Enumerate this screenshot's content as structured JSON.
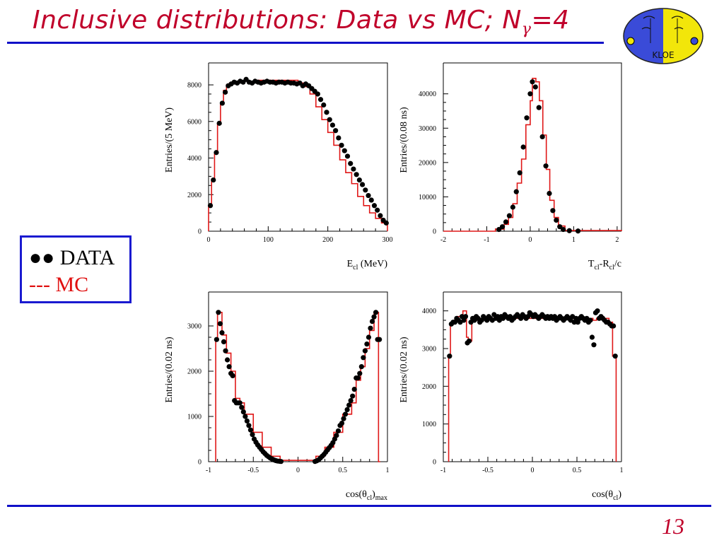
{
  "slide": {
    "title_main": "Inclusive distributions: Data vs MC;   N",
    "title_sub": "γ",
    "title_tail": "=4",
    "page_number": "13",
    "colors": {
      "title": "#c0002a",
      "rule": "#1010c8",
      "mc": "#e01818",
      "data": "#000000",
      "legend_border": "#1a1ad0"
    }
  },
  "logo": {
    "icon": "kloe-logo-icon",
    "text": "KLOE"
  },
  "legend": {
    "data_label": "●● DATA",
    "mc_label": "--- MC"
  },
  "chart_data": [
    {
      "type": "histogram",
      "name": "energy",
      "xlabel": "E",
      "xlabel_sub": "cl",
      "xlabel_tail": " (MeV)",
      "ylabel": "Entries/(5 MeV)",
      "xlim": [
        0,
        300
      ],
      "ylim": [
        0,
        9200
      ],
      "xticks": [
        0,
        100,
        200,
        300
      ],
      "yticks": [
        0,
        2000,
        4000,
        6000,
        8000
      ],
      "mc_bins_x": [
        0,
        5,
        10,
        15,
        20,
        25,
        30,
        35,
        40,
        50,
        60,
        80,
        100,
        130,
        150,
        160,
        170,
        180,
        190,
        200,
        210,
        220,
        230,
        240,
        250,
        260,
        270,
        280,
        290,
        300
      ],
      "mc_values": [
        1400,
        2800,
        4300,
        5900,
        7000,
        7700,
        8000,
        8100,
        8150,
        8200,
        8200,
        8250,
        8250,
        8250,
        8100,
        7900,
        7500,
        6800,
        6100,
        5400,
        4700,
        3900,
        3200,
        2600,
        1900,
        1400,
        1000,
        700,
        450
      ],
      "data_x": [
        3,
        8,
        13,
        18,
        23,
        28,
        33,
        38,
        43,
        48,
        53,
        58,
        63,
        68,
        73,
        78,
        83,
        88,
        93,
        98,
        103,
        108,
        113,
        118,
        123,
        128,
        133,
        138,
        143,
        148,
        153,
        158,
        163,
        168,
        173,
        178,
        183,
        188,
        193,
        198,
        203,
        208,
        213,
        218,
        223,
        228,
        233,
        238,
        243,
        248,
        253,
        258,
        263,
        268,
        273,
        278,
        283,
        288,
        293,
        298
      ],
      "data_y": [
        1400,
        2800,
        4300,
        5900,
        7000,
        7600,
        7950,
        8050,
        8150,
        8100,
        8200,
        8150,
        8300,
        8150,
        8100,
        8200,
        8150,
        8100,
        8150,
        8200,
        8150,
        8150,
        8100,
        8150,
        8150,
        8100,
        8150,
        8100,
        8100,
        8050,
        8100,
        7950,
        8050,
        7950,
        7800,
        7650,
        7500,
        7200,
        6900,
        6500,
        6100,
        5800,
        5500,
        5100,
        4700,
        4400,
        4100,
        3700,
        3400,
        3100,
        2800,
        2550,
        2250,
        1950,
        1700,
        1400,
        1150,
        850,
        600,
        450
      ]
    },
    {
      "type": "histogram",
      "name": "time",
      "xlabel": "T",
      "xlabel_sub": "cl",
      "xlabel_tail": "-R",
      "xlabel_sub2": "cl",
      "xlabel_tail2": "/c",
      "ylabel": "Entries/(0.08 ns)",
      "xlim": [
        -2,
        2.1
      ],
      "ylim": [
        0,
        49000
      ],
      "xticks": [
        -2,
        -1,
        0,
        1,
        2
      ],
      "yticks": [
        0,
        10000,
        20000,
        30000,
        40000
      ],
      "mc_bins_x": [
        -2,
        -0.8,
        -0.6,
        -0.5,
        -0.4,
        -0.3,
        -0.2,
        -0.1,
        0,
        0.05,
        0.13,
        0.21,
        0.29,
        0.37,
        0.45,
        0.55,
        0.65,
        0.8,
        2.1
      ],
      "mc_values": [
        0,
        600,
        2000,
        4000,
        8000,
        14000,
        21000,
        31000,
        38000,
        44500,
        43500,
        38000,
        28000,
        18000,
        9000,
        4000,
        1500,
        200
      ],
      "data_x": [
        -0.72,
        -0.64,
        -0.56,
        -0.48,
        -0.4,
        -0.32,
        -0.24,
        -0.16,
        -0.08,
        0.0,
        0.05,
        0.12,
        0.2,
        0.28,
        0.36,
        0.44,
        0.52,
        0.6,
        0.68,
        0.76,
        0.9,
        1.1
      ],
      "data_y": [
        500,
        1300,
        2700,
        4500,
        7000,
        11500,
        17000,
        24500,
        33000,
        40000,
        43500,
        42000,
        36000,
        27500,
        19000,
        11000,
        6000,
        3200,
        1300,
        500,
        150,
        50
      ]
    },
    {
      "type": "histogram",
      "name": "cos-max",
      "xlabel": "cos(θ",
      "xlabel_sub": "cl",
      "xlabel_tail": ")",
      "xlabel_sub2": "max",
      "xlabel_tail2": "",
      "ylabel": "Entries/(0.02 ns)",
      "xlim": [
        -1,
        1
      ],
      "ylim": [
        0,
        3750
      ],
      "xticks": [
        -1,
        -0.5,
        0,
        0.5,
        1
      ],
      "yticks": [
        0,
        1000,
        2000,
        3000
      ],
      "mc_bins_x": [
        -0.92,
        -0.9,
        -0.85,
        -0.8,
        -0.75,
        -0.7,
        -0.65,
        -0.6,
        -0.5,
        -0.4,
        -0.3,
        -0.2,
        0.2,
        0.3,
        0.4,
        0.5,
        0.6,
        0.65,
        0.7,
        0.75,
        0.8,
        0.85,
        0.9,
        0.92
      ],
      "mc_values": [
        2700,
        3300,
        2800,
        2400,
        2000,
        1400,
        1300,
        1050,
        650,
        320,
        120,
        30,
        120,
        320,
        650,
        1050,
        1300,
        1800,
        2100,
        2500,
        2900,
        3300,
        0
      ],
      "data_x": [
        -0.91,
        -0.89,
        -0.87,
        -0.85,
        -0.83,
        -0.81,
        -0.79,
        -0.77,
        -0.75,
        -0.73,
        -0.71,
        -0.69,
        -0.67,
        -0.65,
        -0.63,
        -0.61,
        -0.59,
        -0.57,
        -0.55,
        -0.53,
        -0.51,
        -0.49,
        -0.47,
        -0.45,
        -0.43,
        -0.41,
        -0.39,
        -0.37,
        -0.35,
        -0.33,
        -0.31,
        -0.29,
        -0.27,
        -0.25,
        -0.23,
        -0.21,
        -0.19,
        0.19,
        0.21,
        0.23,
        0.25,
        0.27,
        0.29,
        0.31,
        0.33,
        0.35,
        0.37,
        0.39,
        0.41,
        0.43,
        0.45,
        0.47,
        0.49,
        0.51,
        0.53,
        0.55,
        0.57,
        0.59,
        0.61,
        0.63,
        0.65,
        0.67,
        0.69,
        0.71,
        0.73,
        0.75,
        0.77,
        0.79,
        0.81,
        0.83,
        0.85,
        0.87,
        0.89,
        0.91
      ],
      "data_y": [
        2700,
        3300,
        3050,
        2850,
        2650,
        2450,
        2250,
        2100,
        1950,
        1900,
        1350,
        1300,
        1300,
        1300,
        1200,
        1100,
        1000,
        900,
        800,
        700,
        600,
        500,
        430,
        370,
        320,
        270,
        220,
        180,
        140,
        110,
        80,
        60,
        40,
        25,
        15,
        10,
        5,
        5,
        20,
        40,
        80,
        120,
        160,
        210,
        260,
        310,
        360,
        420,
        500,
        580,
        680,
        800,
        850,
        950,
        1050,
        1150,
        1250,
        1350,
        1450,
        1600,
        1850,
        1850,
        1950,
        2100,
        2300,
        2450,
        2600,
        2750,
        2950,
        3100,
        3200,
        3300,
        2700,
        2700
      ]
    },
    {
      "type": "histogram",
      "name": "cos",
      "xlabel": "cos(θ",
      "xlabel_sub": "cl",
      "xlabel_tail": ")",
      "ylabel": "Entries/(0.02 ns)",
      "xlim": [
        -1,
        1
      ],
      "ylim": [
        0,
        4500
      ],
      "xticks": [
        -1,
        -0.5,
        0,
        0.5,
        1
      ],
      "yticks": [
        0,
        1000,
        2000,
        3000,
        4000
      ],
      "mc_bins_x": [
        -0.94,
        -0.92,
        -0.88,
        -0.84,
        -0.78,
        -0.74,
        -0.72,
        -0.68,
        -0.6,
        0.6,
        0.68,
        0.72,
        0.76,
        0.8,
        0.86,
        0.9,
        0.94
      ],
      "mc_values": [
        2800,
        3650,
        3750,
        3850,
        4000,
        3300,
        3200,
        3750,
        3800,
        3800,
        3750,
        3800,
        3850,
        3800,
        3700,
        2800
      ],
      "data_x": [
        -0.93,
        -0.91,
        -0.89,
        -0.87,
        -0.85,
        -0.83,
        -0.81,
        -0.79,
        -0.77,
        -0.75,
        -0.73,
        -0.71,
        -0.69,
        -0.67,
        -0.65,
        -0.63,
        -0.61,
        -0.59,
        -0.57,
        -0.55,
        -0.53,
        -0.51,
        -0.49,
        -0.47,
        -0.45,
        -0.43,
        -0.41,
        -0.39,
        -0.37,
        -0.35,
        -0.33,
        -0.31,
        -0.29,
        -0.27,
        -0.25,
        -0.23,
        -0.21,
        -0.19,
        -0.17,
        -0.15,
        -0.13,
        -0.11,
        -0.09,
        -0.07,
        -0.05,
        -0.03,
        -0.01,
        0.01,
        0.03,
        0.05,
        0.07,
        0.09,
        0.11,
        0.13,
        0.15,
        0.17,
        0.19,
        0.21,
        0.23,
        0.25,
        0.27,
        0.29,
        0.31,
        0.33,
        0.35,
        0.37,
        0.39,
        0.41,
        0.43,
        0.45,
        0.47,
        0.49,
        0.51,
        0.53,
        0.55,
        0.57,
        0.59,
        0.61,
        0.63,
        0.65,
        0.67,
        0.69,
        0.71,
        0.73,
        0.75,
        0.77,
        0.79,
        0.81,
        0.83,
        0.85,
        0.87,
        0.89,
        0.91,
        0.93
      ],
      "data_y": [
        2800,
        3650,
        3700,
        3700,
        3800,
        3750,
        3700,
        3850,
        3750,
        3850,
        3150,
        3200,
        3700,
        3800,
        3750,
        3850,
        3800,
        3700,
        3750,
        3850,
        3800,
        3750,
        3850,
        3800,
        3750,
        3900,
        3800,
        3850,
        3750,
        3850,
        3800,
        3900,
        3850,
        3800,
        3850,
        3750,
        3800,
        3850,
        3900,
        3850,
        3800,
        3900,
        3850,
        3800,
        3850,
        3950,
        3900,
        3850,
        3900,
        3850,
        3800,
        3850,
        3900,
        3850,
        3800,
        3850,
        3800,
        3850,
        3800,
        3850,
        3750,
        3800,
        3850,
        3800,
        3750,
        3800,
        3850,
        3800,
        3750,
        3850,
        3700,
        3800,
        3700,
        3800,
        3850,
        3800,
        3750,
        3800,
        3700,
        3750,
        3300,
        3100,
        3950,
        4000,
        3800,
        3850,
        3800,
        3750,
        3700,
        3700,
        3650,
        3600,
        3600,
        2800
      ]
    }
  ]
}
